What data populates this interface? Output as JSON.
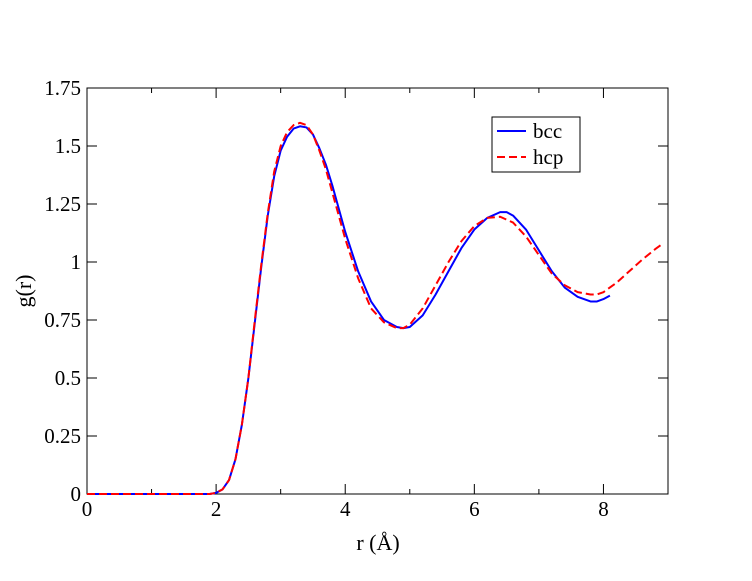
{
  "chart_data": {
    "type": "line",
    "title": "",
    "xlabel": "r   (Å)",
    "ylabel": "g(r)",
    "xlim": [
      0,
      9
    ],
    "ylim": [
      0,
      1.75
    ],
    "x_ticks": [
      0,
      2,
      4,
      6,
      8
    ],
    "x_tick_labels": [
      "0",
      "2",
      "4",
      "6",
      "8"
    ],
    "y_ticks": [
      0,
      0.25,
      0.5,
      0.75,
      1,
      1.25,
      1.5,
      1.75
    ],
    "y_tick_labels": [
      "0",
      "0.25",
      "0.5",
      "0.75",
      "1",
      "1.25",
      "1.5",
      "1.75"
    ],
    "grid": false,
    "legend_position": "top-right",
    "series": [
      {
        "name": "bcc",
        "color": "#0000ff",
        "dash": "solid",
        "x": [
          0,
          1.9,
          2.0,
          2.1,
          2.2,
          2.3,
          2.4,
          2.5,
          2.6,
          2.7,
          2.8,
          2.9,
          3.0,
          3.1,
          3.2,
          3.3,
          3.4,
          3.5,
          3.6,
          3.7,
          3.8,
          3.9,
          4.0,
          4.2,
          4.4,
          4.6,
          4.8,
          4.9,
          5.0,
          5.2,
          5.4,
          5.6,
          5.8,
          6.0,
          6.2,
          6.4,
          6.5,
          6.6,
          6.8,
          7.0,
          7.2,
          7.4,
          7.6,
          7.8,
          7.9,
          8.0,
          8.1
        ],
        "y": [
          0,
          0,
          0.005,
          0.02,
          0.06,
          0.15,
          0.3,
          0.5,
          0.74,
          0.98,
          1.2,
          1.37,
          1.48,
          1.54,
          1.575,
          1.585,
          1.58,
          1.55,
          1.49,
          1.42,
          1.33,
          1.23,
          1.13,
          0.96,
          0.83,
          0.75,
          0.72,
          0.715,
          0.72,
          0.77,
          0.86,
          0.96,
          1.06,
          1.14,
          1.19,
          1.215,
          1.215,
          1.2,
          1.14,
          1.05,
          0.96,
          0.89,
          0.85,
          0.83,
          0.83,
          0.84,
          0.855
        ]
      },
      {
        "name": "hcp",
        "color": "#ff0000",
        "dash": "dashed",
        "x": [
          0,
          1.9,
          2.0,
          2.1,
          2.2,
          2.3,
          2.4,
          2.5,
          2.6,
          2.7,
          2.8,
          2.9,
          3.0,
          3.1,
          3.2,
          3.3,
          3.4,
          3.5,
          3.6,
          3.7,
          3.8,
          3.9,
          4.0,
          4.2,
          4.4,
          4.6,
          4.8,
          4.9,
          5.0,
          5.2,
          5.4,
          5.6,
          5.8,
          6.0,
          6.2,
          6.4,
          6.6,
          6.8,
          7.0,
          7.2,
          7.4,
          7.6,
          7.8,
          7.9,
          8.0,
          8.2,
          8.4,
          8.6,
          8.8,
          8.9
        ],
        "y": [
          0,
          0,
          0.005,
          0.02,
          0.06,
          0.15,
          0.3,
          0.5,
          0.75,
          0.99,
          1.21,
          1.39,
          1.5,
          1.56,
          1.59,
          1.6,
          1.59,
          1.55,
          1.48,
          1.4,
          1.3,
          1.2,
          1.1,
          0.93,
          0.8,
          0.74,
          0.715,
          0.715,
          0.73,
          0.8,
          0.9,
          1.0,
          1.09,
          1.155,
          1.19,
          1.195,
          1.17,
          1.11,
          1.03,
          0.95,
          0.9,
          0.87,
          0.86,
          0.86,
          0.87,
          0.91,
          0.96,
          1.01,
          1.055,
          1.075
        ]
      }
    ]
  }
}
